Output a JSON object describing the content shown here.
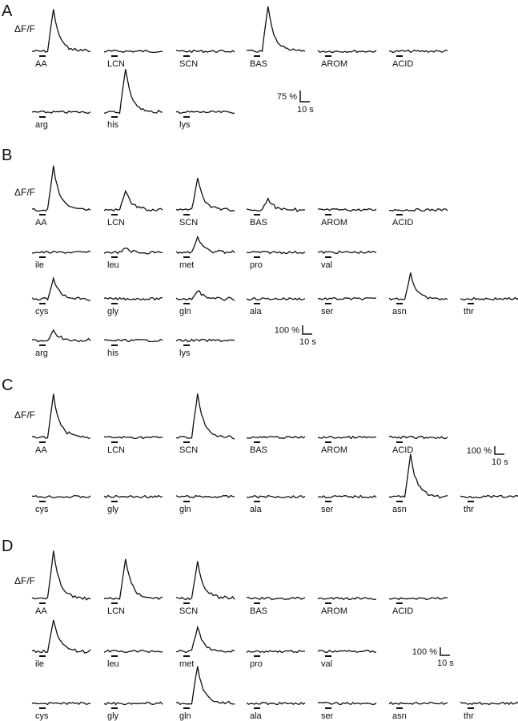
{
  "chart_data": {
    "type": "line",
    "description_units": {
      "y": "ΔF/F (%)",
      "x": "s"
    },
    "panels": [
      {
        "letter": "A",
        "ylabel": "ΔF/F",
        "scale_bar": {
          "y_label": "75 %",
          "x_label": "10 s",
          "y_value": 75,
          "x_value": 10
        },
        "rows": [
          [
            {
              "stimulus": "AA",
              "peak": 285
            },
            {
              "stimulus": "LCN",
              "peak": 0
            },
            {
              "stimulus": "SCN",
              "peak": 0
            },
            {
              "stimulus": "BAS",
              "peak": 300
            },
            {
              "stimulus": "AROM",
              "peak": 0
            },
            {
              "stimulus": "ACID",
              "peak": 0
            }
          ],
          [
            {
              "stimulus": "arg",
              "peak": 0
            },
            {
              "stimulus": "his",
              "peak": 285
            },
            {
              "stimulus": "lys",
              "peak": 0
            }
          ]
        ]
      },
      {
        "letter": "B",
        "ylabel": "ΔF/F",
        "scale_bar": {
          "y_label": "100 %",
          "x_label": "10 s",
          "y_value": 100,
          "x_value": 10
        },
        "rows": [
          [
            {
              "stimulus": "AA",
              "peak": 490
            },
            {
              "stimulus": "LCN",
              "peak": 220
            },
            {
              "stimulus": "SCN",
              "peak": 355
            },
            {
              "stimulus": "BAS",
              "peak": 125
            },
            {
              "stimulus": "AROM",
              "peak": 0
            },
            {
              "stimulus": "ACID",
              "peak": 0
            }
          ],
          [
            {
              "stimulus": "ile",
              "peak": 0
            },
            {
              "stimulus": "leu",
              "peak": 45
            },
            {
              "stimulus": "met",
              "peak": 165
            },
            {
              "stimulus": "pro",
              "peak": 0
            },
            {
              "stimulus": "val",
              "peak": 0
            }
          ],
          [
            {
              "stimulus": "cys",
              "peak": 230
            },
            {
              "stimulus": "gly",
              "peak": 0
            },
            {
              "stimulus": "gln",
              "peak": 100
            },
            {
              "stimulus": "ala",
              "peak": 0
            },
            {
              "stimulus": "ser",
              "peak": 0
            },
            {
              "stimulus": "asn",
              "peak": 290
            },
            {
              "stimulus": "thr",
              "peak": 0
            }
          ],
          [
            {
              "stimulus": "arg",
              "peak": 120
            },
            {
              "stimulus": "his",
              "peak": 0
            },
            {
              "stimulus": "lys",
              "peak": 0
            }
          ]
        ]
      },
      {
        "letter": "C",
        "ylabel": "ΔF/F",
        "scale_bar": {
          "y_label": "100 %",
          "x_label": "10 s",
          "y_value": 100,
          "x_value": 10
        },
        "rows": [
          [
            {
              "stimulus": "AA",
              "peak": 540
            },
            {
              "stimulus": "LCN",
              "peak": 0
            },
            {
              "stimulus": "SCN",
              "peak": 550
            },
            {
              "stimulus": "BAS",
              "peak": 0
            },
            {
              "stimulus": "AROM",
              "peak": 0
            },
            {
              "stimulus": "ACID",
              "peak": 0
            }
          ],
          [
            {
              "stimulus": "cys",
              "peak": 0
            },
            {
              "stimulus": "gly",
              "peak": 0
            },
            {
              "stimulus": "gln",
              "peak": 0
            },
            {
              "stimulus": "ala",
              "peak": 0
            },
            {
              "stimulus": "ser",
              "peak": 0
            },
            {
              "stimulus": "asn",
              "peak": 530
            },
            {
              "stimulus": "thr",
              "peak": 0
            }
          ]
        ]
      },
      {
        "letter": "D",
        "ylabel": "ΔF/F",
        "scale_bar": {
          "y_label": "100 %",
          "x_label": "10 s",
          "y_value": 100,
          "x_value": 10
        },
        "rows": [
          [
            {
              "stimulus": "AA",
              "peak": 590
            },
            {
              "stimulus": "LCN",
              "peak": 500
            },
            {
              "stimulus": "SCN",
              "peak": 450
            },
            {
              "stimulus": "BAS",
              "peak": 0
            },
            {
              "stimulus": "AROM",
              "peak": 0
            },
            {
              "stimulus": "ACID",
              "peak": 0
            }
          ],
          [
            {
              "stimulus": "ile",
              "peak": 400
            },
            {
              "stimulus": "leu",
              "peak": 0
            },
            {
              "stimulus": "met",
              "peak": 300
            },
            {
              "stimulus": "pro",
              "peak": 0
            },
            {
              "stimulus": "val",
              "peak": 0
            }
          ],
          [
            {
              "stimulus": "cys",
              "peak": 0
            },
            {
              "stimulus": "gly",
              "peak": 0
            },
            {
              "stimulus": "gln",
              "peak": 460
            },
            {
              "stimulus": "ala",
              "peak": 0
            },
            {
              "stimulus": "ser",
              "peak": 0
            },
            {
              "stimulus": "asn",
              "peak": 0
            },
            {
              "stimulus": "thr",
              "peak": 0
            }
          ]
        ]
      }
    ]
  }
}
